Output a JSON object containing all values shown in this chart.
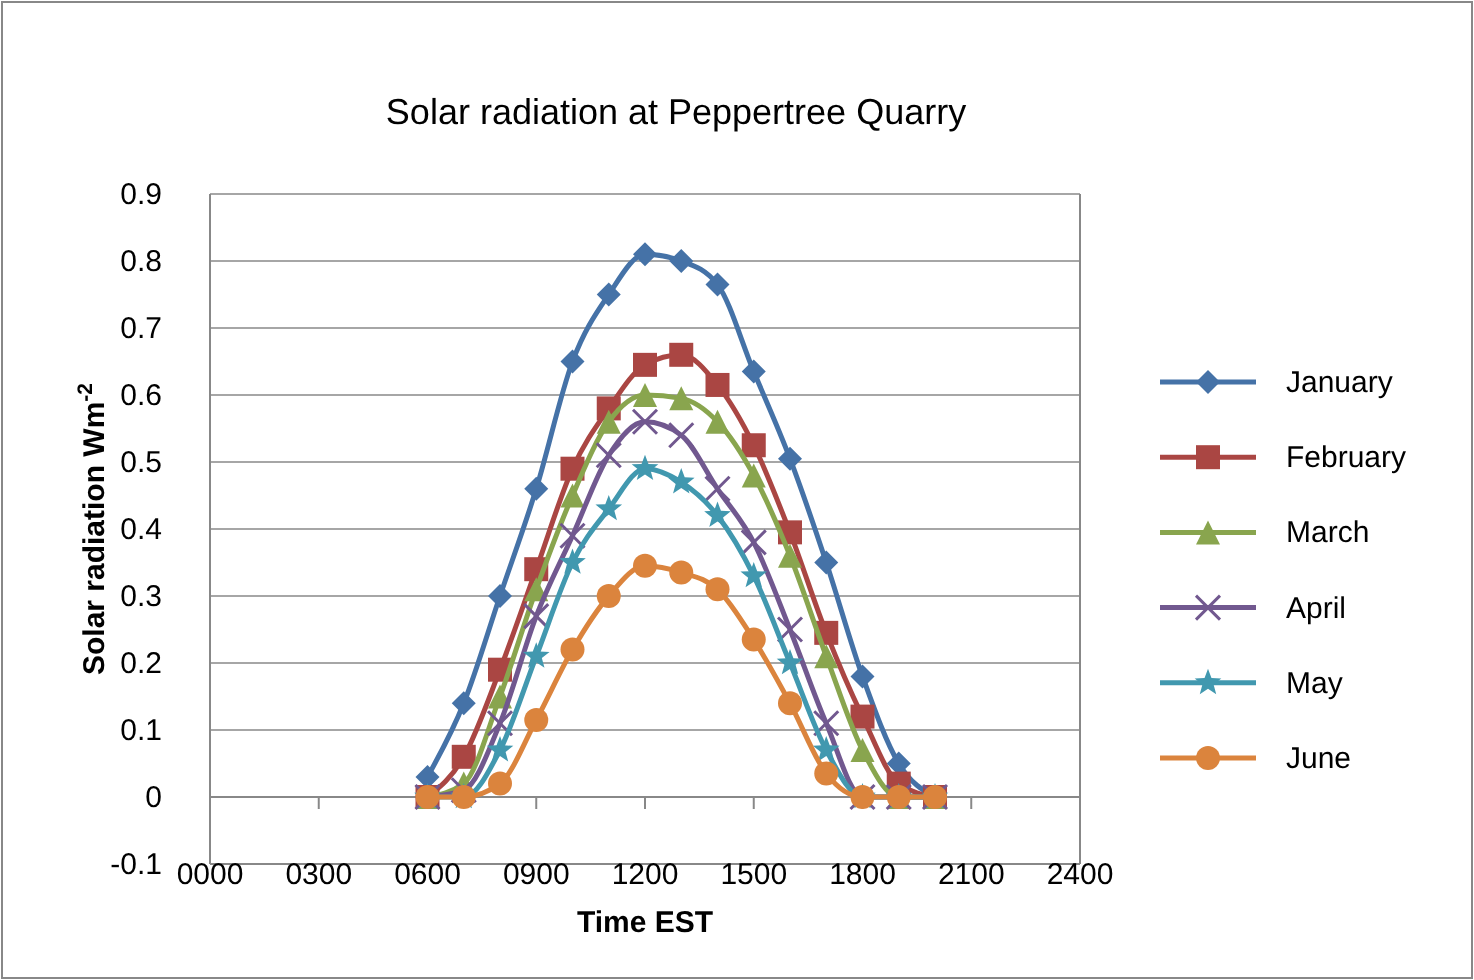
{
  "chart_data": {
    "type": "line",
    "title": "Solar radiation at Peppertree Quarry",
    "xlabel": "Time EST",
    "ylabel": "Solar radiation Wm$^{-2}$",
    "x": [
      600,
      700,
      800,
      900,
      1000,
      1100,
      1200,
      1300,
      1400,
      1500,
      1600,
      1700,
      1800,
      1900,
      2000
    ],
    "xlim": [
      0,
      2400
    ],
    "xticks": [
      {
        "value": 0,
        "label": "0000"
      },
      {
        "value": 300,
        "label": "0300"
      },
      {
        "value": 600,
        "label": "0600"
      },
      {
        "value": 900,
        "label": "0900"
      },
      {
        "value": 1200,
        "label": "1200"
      },
      {
        "value": 1500,
        "label": "1500"
      },
      {
        "value": 1800,
        "label": "1800"
      },
      {
        "value": 2100,
        "label": "2100"
      },
      {
        "value": 2400,
        "label": "2400"
      }
    ],
    "ylim": [
      -0.1,
      0.9
    ],
    "yticks": [
      -0.1,
      0,
      0.1,
      0.2,
      0.3,
      0.4,
      0.5,
      0.6,
      0.7,
      0.8,
      0.9
    ],
    "grid": "y",
    "legend": "right",
    "series": [
      {
        "name": "January",
        "color": "#4572a7",
        "marker": "diamond",
        "values": [
          0.03,
          0.14,
          0.3,
          0.46,
          0.65,
          0.75,
          0.81,
          0.8,
          0.765,
          0.635,
          0.505,
          0.35,
          0.18,
          0.05,
          0
        ]
      },
      {
        "name": "February",
        "color": "#aa4643",
        "marker": "square",
        "values": [
          0,
          0.06,
          0.19,
          0.34,
          0.49,
          0.58,
          0.645,
          0.66,
          0.615,
          0.525,
          0.395,
          0.245,
          0.12,
          0.02,
          0
        ]
      },
      {
        "name": "March",
        "color": "#89a54e",
        "marker": "triangle",
        "values": [
          0,
          0.02,
          0.15,
          0.31,
          0.45,
          0.56,
          0.6,
          0.595,
          0.56,
          0.48,
          0.36,
          0.21,
          0.07,
          0,
          0
        ]
      },
      {
        "name": "April",
        "color": "#71588f",
        "marker": "cross",
        "values": [
          0,
          0.01,
          0.11,
          0.27,
          0.39,
          0.51,
          0.56,
          0.54,
          0.46,
          0.38,
          0.25,
          0.11,
          0,
          0,
          0
        ]
      },
      {
        "name": "May",
        "color": "#4198af",
        "marker": "star",
        "values": [
          0,
          0,
          0.07,
          0.21,
          0.35,
          0.43,
          0.49,
          0.47,
          0.42,
          0.33,
          0.2,
          0.07,
          0,
          0,
          0
        ]
      },
      {
        "name": "June",
        "color": "#db843d",
        "marker": "circle",
        "values": [
          0,
          0,
          0.02,
          0.115,
          0.22,
          0.3,
          0.345,
          0.335,
          0.31,
          0.235,
          0.14,
          0.035,
          0,
          0,
          0
        ]
      }
    ]
  }
}
